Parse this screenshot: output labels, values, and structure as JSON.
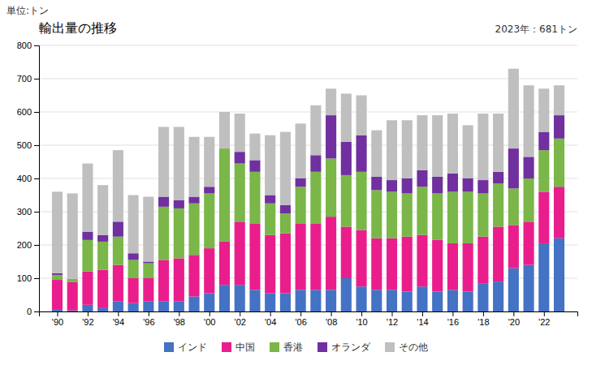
{
  "chart_data": {
    "type": "bar",
    "stacked": true,
    "title": "輸出量の推移",
    "ylabel": "単位:トン",
    "annotation": "2023年：681トン",
    "x": [
      1990,
      1991,
      1992,
      1993,
      1994,
      1995,
      1996,
      1997,
      1998,
      1999,
      2000,
      2001,
      2002,
      2003,
      2004,
      2005,
      2006,
      2007,
      2008,
      2009,
      2010,
      2011,
      2012,
      2013,
      2014,
      2015,
      2016,
      2017,
      2018,
      2019,
      2020,
      2021,
      2022,
      2023
    ],
    "series": [
      {
        "name": "インド",
        "color": "#4472C4",
        "values": [
          5,
          3,
          20,
          10,
          30,
          25,
          30,
          30,
          30,
          45,
          55,
          80,
          80,
          65,
          55,
          55,
          65,
          65,
          65,
          100,
          75,
          65,
          65,
          60,
          75,
          60,
          65,
          60,
          85,
          90,
          130,
          140,
          205,
          220
        ]
      },
      {
        "name": "中国",
        "color": "#E91E8C",
        "values": [
          90,
          85,
          100,
          115,
          110,
          75,
          70,
          125,
          130,
          125,
          135,
          130,
          190,
          200,
          175,
          180,
          200,
          200,
          220,
          155,
          170,
          155,
          155,
          165,
          155,
          155,
          140,
          145,
          140,
          165,
          130,
          130,
          155,
          155
        ]
      },
      {
        "name": "香港",
        "color": "#7AB648",
        "values": [
          15,
          10,
          95,
          85,
          85,
          55,
          45,
          160,
          150,
          155,
          165,
          280,
          175,
          155,
          95,
          60,
          110,
          155,
          175,
          155,
          175,
          145,
          140,
          130,
          145,
          140,
          155,
          155,
          130,
          130,
          110,
          130,
          125,
          145
        ]
      },
      {
        "name": "オランダ",
        "color": "#7030A0",
        "values": [
          5,
          0,
          25,
          20,
          45,
          20,
          5,
          30,
          25,
          20,
          20,
          0,
          35,
          35,
          25,
          25,
          25,
          50,
          130,
          100,
          110,
          40,
          35,
          45,
          50,
          50,
          55,
          40,
          40,
          35,
          120,
          65,
          55,
          70
        ]
      },
      {
        "name": "その他",
        "color": "#BFBFBF",
        "values": [
          245,
          257,
          205,
          150,
          215,
          175,
          195,
          210,
          220,
          180,
          150,
          110,
          115,
          80,
          180,
          220,
          165,
          150,
          80,
          145,
          120,
          140,
          180,
          175,
          165,
          185,
          180,
          160,
          200,
          175,
          240,
          215,
          130,
          90
        ]
      }
    ],
    "xlim": [
      1988.8,
      2024.2
    ],
    "xticks": [
      {
        "value": 1990,
        "label": "'90"
      },
      {
        "value": 1992,
        "label": "'92"
      },
      {
        "value": 1994,
        "label": "'94"
      },
      {
        "value": 1996,
        "label": "'96"
      },
      {
        "value": 1998,
        "label": "'98"
      },
      {
        "value": 2000,
        "label": "'00"
      },
      {
        "value": 2002,
        "label": "'02"
      },
      {
        "value": 2004,
        "label": "'04"
      },
      {
        "value": 2006,
        "label": "'06"
      },
      {
        "value": 2008,
        "label": "'08"
      },
      {
        "value": 2010,
        "label": "'10"
      },
      {
        "value": 2012,
        "label": "'12"
      },
      {
        "value": 2014,
        "label": "'14"
      },
      {
        "value": 2016,
        "label": "'16"
      },
      {
        "value": 2018,
        "label": "'18"
      },
      {
        "value": 2020,
        "label": "'20"
      },
      {
        "value": 2022,
        "label": "'22"
      }
    ],
    "ylim": [
      0,
      800
    ],
    "yticks": [
      0,
      100,
      200,
      300,
      400,
      500,
      600,
      700,
      800
    ],
    "grid": true,
    "legend": "bottom"
  }
}
